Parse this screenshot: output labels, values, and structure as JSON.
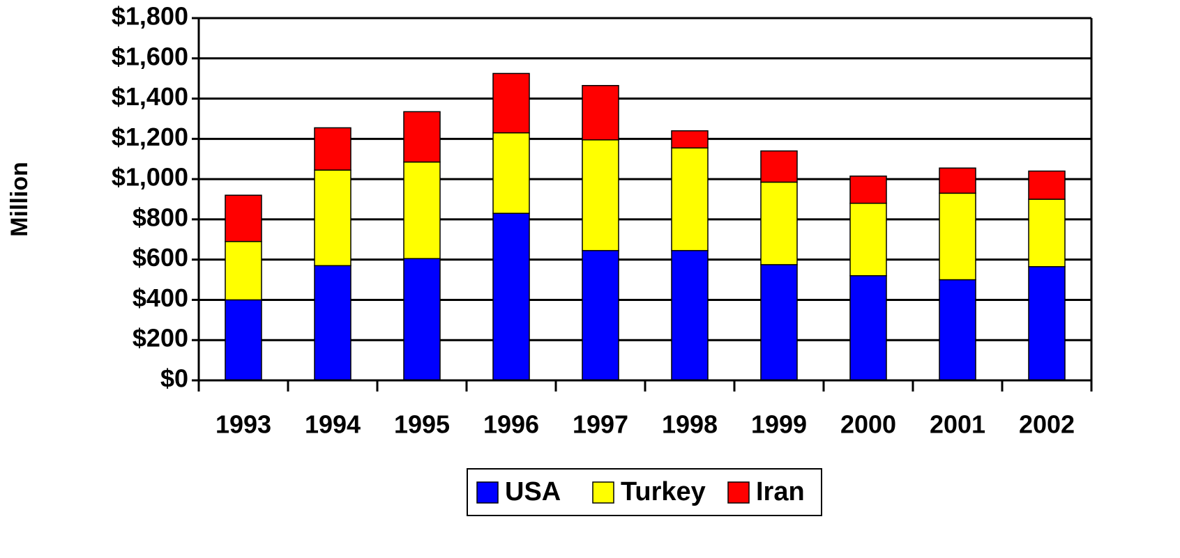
{
  "chart_data": {
    "type": "bar",
    "stacked": true,
    "y_label": "Million",
    "categories": [
      "1993",
      "1994",
      "1995",
      "1996",
      "1997",
      "1998",
      "1999",
      "2000",
      "2001",
      "2002"
    ],
    "series": [
      {
        "name": "USA",
        "color": "#0000ff",
        "values": [
          400,
          570,
          605,
          830,
          645,
          645,
          575,
          520,
          500,
          565
        ]
      },
      {
        "name": "Turkey",
        "color": "#ffff00",
        "values": [
          290,
          475,
          480,
          400,
          550,
          510,
          410,
          360,
          430,
          335
        ]
      },
      {
        "name": "Iran",
        "color": "#ff0000",
        "values": [
          230,
          210,
          250,
          295,
          270,
          85,
          155,
          135,
          125,
          140
        ]
      }
    ],
    "ylim": [
      0,
      1800
    ],
    "yticks": [
      {
        "value": 0,
        "label": "$0"
      },
      {
        "value": 200,
        "label": "$200"
      },
      {
        "value": 400,
        "label": "$400"
      },
      {
        "value": 600,
        "label": "$600"
      },
      {
        "value": 800,
        "label": "$800"
      },
      {
        "value": 1000,
        "label": "$1,000"
      },
      {
        "value": 1200,
        "label": "$1,200"
      },
      {
        "value": 1400,
        "label": "$1,400"
      },
      {
        "value": 1600,
        "label": "$1,600"
      },
      {
        "value": 1800,
        "label": "$1,800"
      }
    ],
    "grid": true,
    "legend": "bottom"
  }
}
